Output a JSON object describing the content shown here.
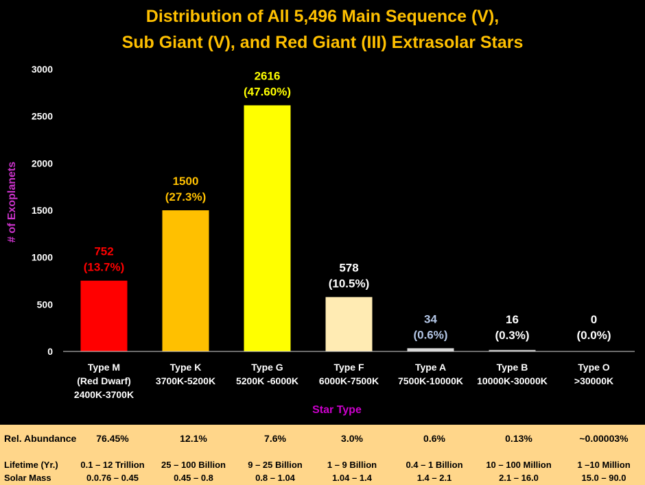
{
  "chart_data": {
    "type": "bar",
    "title": [
      "Distribution of All 5,496 Main Sequence (V),",
      "Sub Giant (V), and Red Giant (III) Extrasolar Stars"
    ],
    "ylabel": "# of Exoplanets",
    "xlabel": "Star Type",
    "ylim": [
      0,
      3000
    ],
    "yticks": [
      0,
      500,
      1000,
      1500,
      2000,
      2500,
      3000
    ],
    "grid": false,
    "categories": [
      [
        "Type M",
        "(Red Dwarf)",
        "2400K-3700K"
      ],
      [
        "Type K",
        "3700K-5200K"
      ],
      [
        "Type G",
        "5200K -6000K"
      ],
      [
        "Type F",
        "6000K-7500K"
      ],
      [
        "Type A",
        "7500K-10000K"
      ],
      [
        "Type B",
        "10000K-30000K"
      ],
      [
        "Type O",
        ">30000K"
      ]
    ],
    "values": [
      752,
      1500,
      2616,
      578,
      34,
      16,
      0
    ],
    "data_labels": [
      [
        "752",
        "(13.7%)"
      ],
      [
        "1500",
        "(27.3%)"
      ],
      [
        "2616",
        "(47.60%)"
      ],
      [
        "578",
        "(10.5%)"
      ],
      [
        "34",
        "(0.6%)"
      ],
      [
        "16",
        "(0.3%)"
      ],
      [
        "0",
        "(0.0%)"
      ]
    ],
    "bar_colors": [
      "#ff0000",
      "#ffc000",
      "#ffff00",
      "#ffebb3",
      "#d9d9d9",
      "#bfbfbf",
      "#bfbfbf"
    ],
    "label_colors": [
      "#ff0000",
      "#ffc000",
      "#ffff00",
      "#ffffff",
      "#b4c7e7",
      "#ffffff",
      "#ffffff"
    ],
    "title_color": "#ffc000",
    "ylabel_color": "#cc33cc",
    "xlabel_color": "#cc00cc"
  },
  "table": {
    "rows": [
      {
        "label": "Rel. Abundance",
        "values": [
          "76.45%",
          "12.1%",
          "7.6%",
          "3.0%",
          "0.6%",
          "0.13%",
          "~0.00003%"
        ]
      },
      {
        "label": "Lifetime (Yr.)",
        "values": [
          "0.1 – 12 Trillion",
          "25 – 100 Billion",
          "9 – 25 Billion",
          "1 – 9 Billion",
          "0.4 – 1 Billion",
          "10 – 100 Million",
          "1 –10 Million"
        ]
      },
      {
        "label": "Solar Mass",
        "values": [
          "0.0.76 – 0.45",
          "0.45 – 0.8",
          "0.8 – 1.04",
          "1.04 – 1.4",
          "1.4 – 2.1",
          "2.1 – 16.0",
          "15.0 – 90.0"
        ]
      }
    ]
  }
}
